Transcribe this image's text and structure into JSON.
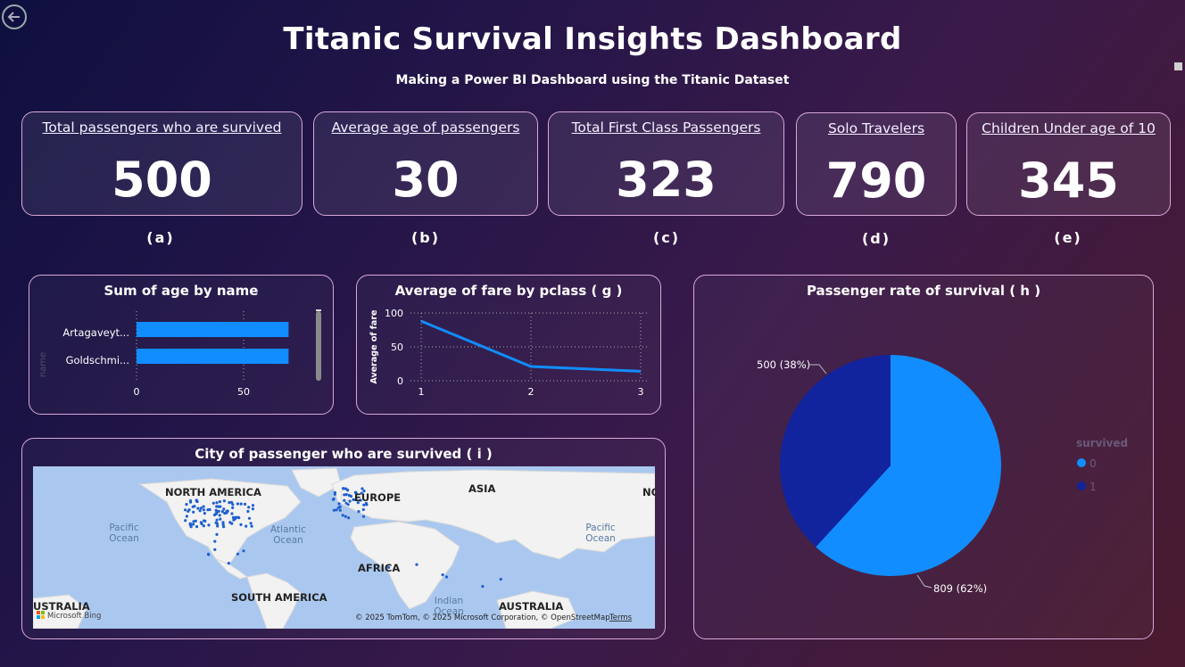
{
  "header": {
    "title": "Titanic Survival Insights Dashboard",
    "subtitle": "Making a Power BI Dashboard using the Titanic Dataset",
    "back_icon": "back-arrow-icon"
  },
  "kpis": [
    {
      "label": "Total passengers who are survived",
      "value": "500",
      "tag": "(a)"
    },
    {
      "label": "Average age of passengers",
      "value": "30",
      "tag": "(b)"
    },
    {
      "label": "Total First Class Passengers",
      "value": "323",
      "tag": "(c)"
    },
    {
      "label": "Solo Travelers",
      "value": "790",
      "tag": "(d)"
    },
    {
      "label": "Children Under age of 10",
      "value": "345",
      "tag": "(e)"
    }
  ],
  "colors": {
    "bar": "#118dff",
    "pie_0": "#118dff",
    "pie_1": "#12239e",
    "card_border": "#d9a8d8"
  },
  "chart_data": [
    {
      "type": "bar",
      "orientation": "horizontal",
      "title": "Sum of age by name",
      "ylabel": "name",
      "categories": [
        "Artagaveyt...",
        "Goldschmi..."
      ],
      "values": [
        71,
        71
      ],
      "xticks": [
        "0",
        "50"
      ],
      "xlim": [
        0,
        75
      ]
    },
    {
      "type": "line",
      "title": "Average of fare by pclass ( g )",
      "ylabel": "Average of fare",
      "x": [
        1,
        2,
        3
      ],
      "values": [
        88,
        21,
        14
      ],
      "yticks": [
        "0",
        "50",
        "100"
      ],
      "xticks": [
        "1",
        "2",
        "3"
      ],
      "ylim": [
        0,
        100
      ],
      "grid": true
    },
    {
      "type": "pie",
      "title": "Passenger rate of survival ( h )",
      "legend_title": "survived",
      "legend_position": "right",
      "slices": [
        {
          "name": "0",
          "value": 809,
          "label": "809 (62%)"
        },
        {
          "name": "1",
          "value": 500,
          "label": "500 (38%)"
        }
      ]
    }
  ],
  "map": {
    "title": "City of passenger who are survived ( i )",
    "labels": {
      "north_america": "NORTH AMERICA",
      "europe": "EUROPE",
      "asia": "ASIA",
      "pacific1a": "Pacific",
      "pacific1b": "Ocean",
      "atlantic_a": "Atlantic",
      "atlantic_b": "Ocean",
      "pacific2a": "Pacific",
      "pacific2b": "Ocean",
      "africa": "AFRICA",
      "south_america": "SOUTH AMERICA",
      "indian_a": "Indian",
      "indian_b": "Ocean",
      "australia1": "USTRALIA",
      "australia2": "AUSTRALIA",
      "no": "NO"
    },
    "brand": "Microsoft Bing",
    "attribution": "© 2025 TomTom, © 2025 Microsoft Corporation, © OpenStreetMap",
    "terms": "Terms"
  }
}
